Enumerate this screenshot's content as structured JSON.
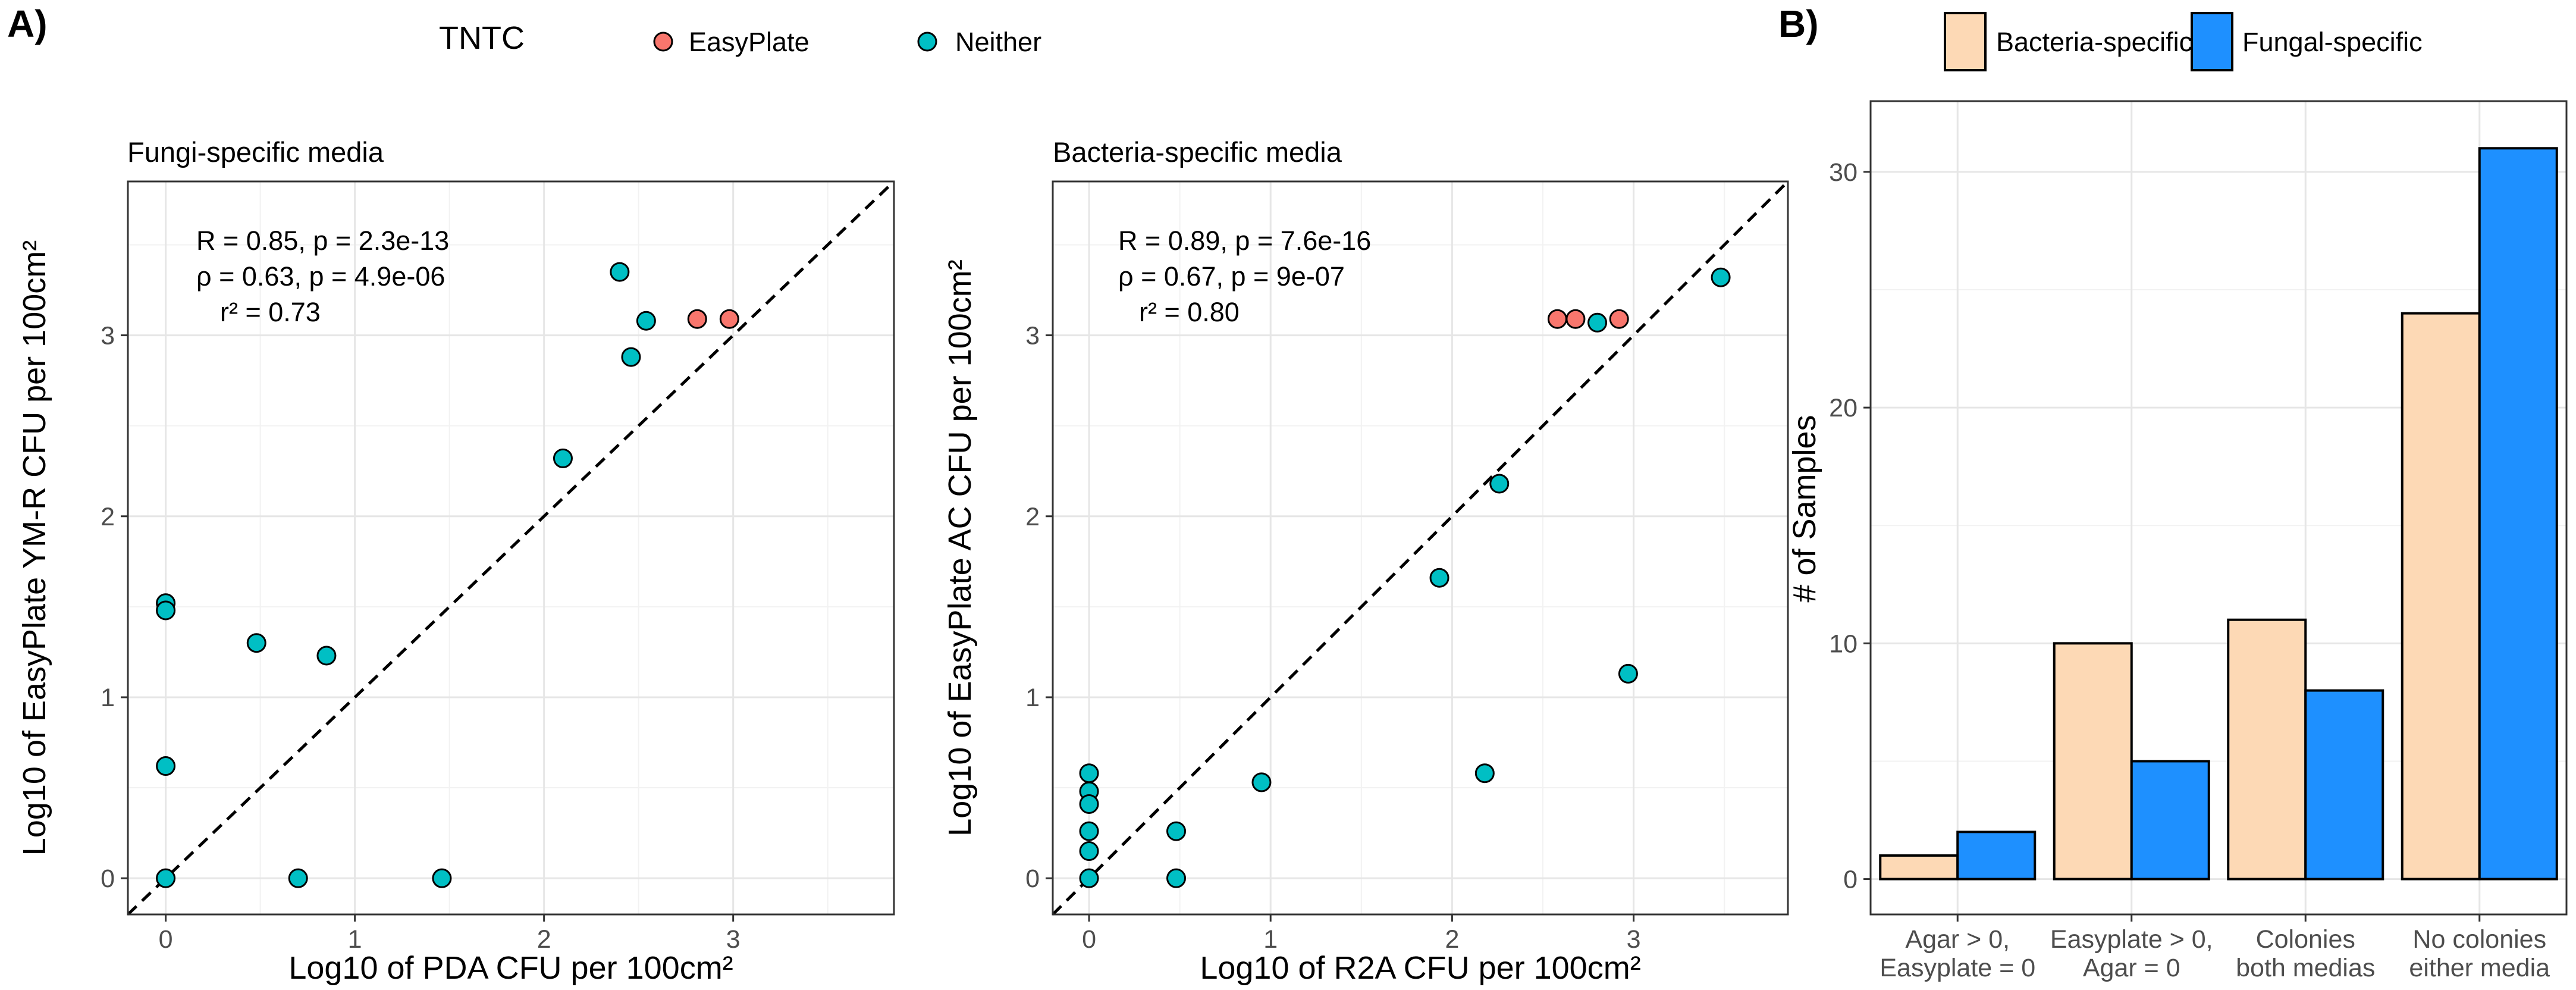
{
  "colors": {
    "easyplate": "#F8766D",
    "neither": "#00BFC4",
    "bacteria": "#FDD9B5",
    "fungal": "#1E90FF"
  },
  "panel_labels": {
    "a": "A)",
    "b": "B)"
  },
  "legend_a": {
    "title": "TNTC",
    "items": [
      {
        "label": "EasyPlate",
        "color_key": "easyplate"
      },
      {
        "label": "Neither",
        "color_key": "neither"
      }
    ]
  },
  "legend_b": {
    "items": [
      {
        "label": "Bacteria-specific",
        "color_key": "bacteria"
      },
      {
        "label": "Fungal-specific",
        "color_key": "fungal"
      }
    ]
  },
  "chart_data": [
    {
      "type": "scatter",
      "title": "Fungi-specific media",
      "xlabel": "Log10 of PDA CFU per 100cm²",
      "ylabel": "Log10 of EasyPlate YM-R CFU per 100cm²",
      "xlim": [
        -0.2,
        3.85
      ],
      "ylim": [
        -0.2,
        3.85
      ],
      "xticks": [
        0,
        1,
        2,
        3
      ],
      "yticks": [
        0,
        1,
        2,
        3
      ],
      "reference_line": "y = x",
      "stats": {
        "line1": "R = 0.85, p = 2.3e-13",
        "line2": "ρ = 0.63, p = 4.9e-06",
        "line3": "r² = 0.73"
      },
      "series": [
        {
          "name": "Neither",
          "color_key": "neither",
          "points": [
            [
              0,
              1.52
            ],
            [
              0,
              1.48
            ],
            [
              0,
              0.62
            ],
            [
              0,
              0
            ],
            [
              0.48,
              1.3
            ],
            [
              0.85,
              1.23
            ],
            [
              0.7,
              0
            ],
            [
              1.46,
              0
            ],
            [
              2.1,
              2.32
            ],
            [
              2.4,
              3.35
            ],
            [
              2.46,
              2.88
            ],
            [
              2.54,
              3.08
            ]
          ]
        },
        {
          "name": "EasyPlate",
          "color_key": "easyplate",
          "points": [
            [
              2.81,
              3.09
            ],
            [
              2.98,
              3.09
            ]
          ]
        }
      ]
    },
    {
      "type": "scatter",
      "title": "Bacteria-specific media",
      "xlabel": "Log10 of R2A CFU per 100cm²",
      "ylabel": "Log10 of EasyPlate AC CFU per 100cm²",
      "xlim": [
        -0.2,
        3.85
      ],
      "ylim": [
        -0.2,
        3.85
      ],
      "xticks": [
        0,
        1,
        2,
        3
      ],
      "yticks": [
        0,
        1,
        2,
        3
      ],
      "reference_line": "y = x",
      "stats": {
        "line1": "R = 0.89, p = 7.6e-16",
        "line2": "ρ = 0.67, p = 9e-07",
        "line3": "r² = 0.80"
      },
      "series": [
        {
          "name": "Neither",
          "color_key": "neither",
          "points": [
            [
              0,
              0.58
            ],
            [
              0,
              0.48
            ],
            [
              0,
              0.41
            ],
            [
              0,
              0.26
            ],
            [
              0,
              0.15
            ],
            [
              0,
              0
            ],
            [
              0.48,
              0.26
            ],
            [
              0.48,
              0
            ],
            [
              0.95,
              0.53
            ],
            [
              1.93,
              1.66
            ],
            [
              2.18,
              0.58
            ],
            [
              2.26,
              2.18
            ],
            [
              2.8,
              3.07
            ],
            [
              2.97,
              1.13
            ],
            [
              3.48,
              3.32
            ]
          ]
        },
        {
          "name": "EasyPlate",
          "color_key": "easyplate",
          "points": [
            [
              2.58,
              3.09
            ],
            [
              2.68,
              3.09
            ],
            [
              2.92,
              3.09
            ]
          ]
        }
      ]
    },
    {
      "type": "bar",
      "ylabel": "# of Samples",
      "xlabel": "",
      "ylim": [
        -1.5,
        33
      ],
      "yticks": [
        0,
        10,
        20,
        30
      ],
      "categories": [
        "Agar > 0,\nEasyplate = 0",
        "Easyplate > 0,\nAgar = 0",
        "Colonies\nboth medias",
        "No colonies\neither media"
      ],
      "series": [
        {
          "name": "Bacteria-specific",
          "color_key": "bacteria",
          "values": [
            1,
            10,
            11,
            24
          ]
        },
        {
          "name": "Fungal-specific",
          "color_key": "fungal",
          "values": [
            2,
            5,
            8,
            31
          ]
        }
      ]
    }
  ]
}
